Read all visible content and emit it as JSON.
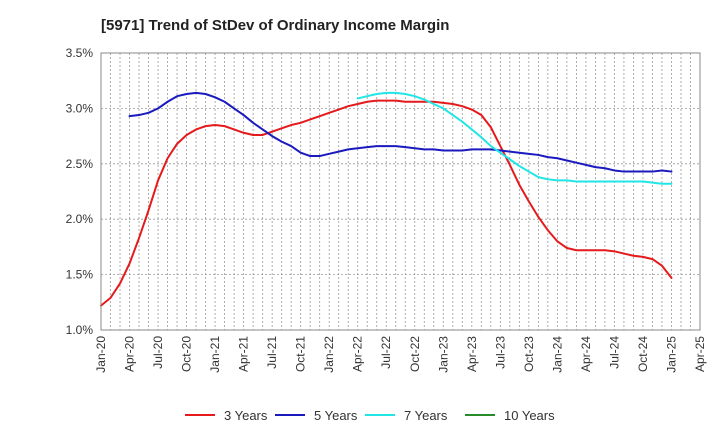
{
  "chart_data": {
    "type": "line",
    "title": "[5971]  Trend of StDev of Ordinary Income Margin",
    "xlabel": "",
    "ylabel": "",
    "ylim": [
      1.0,
      3.5
    ],
    "yticks": [
      1.0,
      1.5,
      2.0,
      2.5,
      3.0,
      3.5
    ],
    "ytick_labels": [
      "1.0%",
      "1.5%",
      "2.0%",
      "2.5%",
      "3.0%",
      "3.5%"
    ],
    "xlim": [
      "2020-01",
      "2025-04"
    ],
    "xticks": [
      "2020-01",
      "2020-04",
      "2020-07",
      "2020-10",
      "2021-01",
      "2021-04",
      "2021-07",
      "2021-10",
      "2022-01",
      "2022-04",
      "2022-07",
      "2022-10",
      "2023-01",
      "2023-04",
      "2023-07",
      "2023-10",
      "2024-01",
      "2024-04",
      "2024-07",
      "2024-10",
      "2025-01",
      "2025-04"
    ],
    "xtick_labels": [
      "Jan-20",
      "Apr-20",
      "Jul-20",
      "Oct-20",
      "Jan-21",
      "Apr-21",
      "Jul-21",
      "Oct-21",
      "Jan-22",
      "Apr-22",
      "Jul-22",
      "Oct-22",
      "Jan-23",
      "Apr-23",
      "Jul-23",
      "Oct-23",
      "Jan-24",
      "Apr-24",
      "Jul-24",
      "Oct-24",
      "Jan-25",
      "Apr-25"
    ],
    "grid": true,
    "legend_position": "bottom",
    "series": [
      {
        "name": "3 Years",
        "color": "#e41a1c",
        "x": [
          "2020-01",
          "2020-02",
          "2020-03",
          "2020-04",
          "2020-05",
          "2020-06",
          "2020-07",
          "2020-08",
          "2020-09",
          "2020-10",
          "2020-11",
          "2020-12",
          "2021-01",
          "2021-02",
          "2021-03",
          "2021-04",
          "2021-05",
          "2021-06",
          "2021-07",
          "2021-08",
          "2021-09",
          "2021-10",
          "2021-11",
          "2021-12",
          "2022-01",
          "2022-02",
          "2022-03",
          "2022-04",
          "2022-05",
          "2022-06",
          "2022-07",
          "2022-08",
          "2022-09",
          "2022-10",
          "2022-11",
          "2022-12",
          "2023-01",
          "2023-02",
          "2023-03",
          "2023-04",
          "2023-05",
          "2023-06",
          "2023-07",
          "2023-08",
          "2023-09",
          "2023-10",
          "2023-11",
          "2023-12",
          "2024-01",
          "2024-02",
          "2024-03",
          "2024-04",
          "2024-05",
          "2024-06",
          "2024-07",
          "2024-08",
          "2024-09",
          "2024-10",
          "2024-11",
          "2024-12",
          "2025-01"
        ],
        "values": [
          1.22,
          1.29,
          1.42,
          1.6,
          1.83,
          2.08,
          2.35,
          2.55,
          2.68,
          2.76,
          2.81,
          2.84,
          2.85,
          2.84,
          2.81,
          2.78,
          2.76,
          2.76,
          2.79,
          2.82,
          2.85,
          2.87,
          2.9,
          2.93,
          2.96,
          2.99,
          3.02,
          3.04,
          3.06,
          3.07,
          3.07,
          3.07,
          3.06,
          3.06,
          3.06,
          3.06,
          3.05,
          3.04,
          3.02,
          2.99,
          2.94,
          2.83,
          2.66,
          2.49,
          2.31,
          2.16,
          2.02,
          1.9,
          1.8,
          1.74,
          1.72,
          1.72,
          1.72,
          1.72,
          1.71,
          1.69,
          1.67,
          1.66,
          1.64,
          1.58,
          1.47
        ]
      },
      {
        "name": "5 Years",
        "color": "#1a1abf",
        "x": [
          "2020-04",
          "2020-05",
          "2020-06",
          "2020-07",
          "2020-08",
          "2020-09",
          "2020-10",
          "2020-11",
          "2020-12",
          "2021-01",
          "2021-02",
          "2021-03",
          "2021-04",
          "2021-05",
          "2021-06",
          "2021-07",
          "2021-08",
          "2021-09",
          "2021-10",
          "2021-11",
          "2021-12",
          "2022-01",
          "2022-02",
          "2022-03",
          "2022-04",
          "2022-05",
          "2022-06",
          "2022-07",
          "2022-08",
          "2022-09",
          "2022-10",
          "2022-11",
          "2022-12",
          "2023-01",
          "2023-02",
          "2023-03",
          "2023-04",
          "2023-05",
          "2023-06",
          "2023-07",
          "2023-08",
          "2023-09",
          "2023-10",
          "2023-11",
          "2023-12",
          "2024-01",
          "2024-02",
          "2024-03",
          "2024-04",
          "2024-05",
          "2024-06",
          "2024-07",
          "2024-08",
          "2024-09",
          "2024-10",
          "2024-11",
          "2024-12",
          "2025-01"
        ],
        "values": [
          2.93,
          2.94,
          2.96,
          3.0,
          3.06,
          3.11,
          3.13,
          3.14,
          3.13,
          3.1,
          3.06,
          3.0,
          2.94,
          2.87,
          2.81,
          2.75,
          2.7,
          2.66,
          2.6,
          2.57,
          2.57,
          2.59,
          2.61,
          2.63,
          2.64,
          2.65,
          2.66,
          2.66,
          2.66,
          2.65,
          2.64,
          2.63,
          2.63,
          2.62,
          2.62,
          2.62,
          2.63,
          2.63,
          2.63,
          2.62,
          2.61,
          2.6,
          2.59,
          2.58,
          2.56,
          2.55,
          2.53,
          2.51,
          2.49,
          2.47,
          2.46,
          2.44,
          2.43,
          2.43,
          2.43,
          2.43,
          2.44,
          2.43
        ]
      },
      {
        "name": "7 Years",
        "color": "#22e5e5",
        "x": [
          "2022-04",
          "2022-05",
          "2022-06",
          "2022-07",
          "2022-08",
          "2022-09",
          "2022-10",
          "2022-11",
          "2022-12",
          "2023-01",
          "2023-02",
          "2023-03",
          "2023-04",
          "2023-05",
          "2023-06",
          "2023-07",
          "2023-08",
          "2023-09",
          "2023-10",
          "2023-11",
          "2023-12",
          "2024-01",
          "2024-02",
          "2024-03",
          "2024-04",
          "2024-05",
          "2024-06",
          "2024-07",
          "2024-08",
          "2024-09",
          "2024-10",
          "2024-11",
          "2024-12",
          "2025-01"
        ],
        "values": [
          3.09,
          3.11,
          3.13,
          3.14,
          3.14,
          3.13,
          3.11,
          3.08,
          3.04,
          3.0,
          2.94,
          2.88,
          2.81,
          2.74,
          2.66,
          2.6,
          2.54,
          2.48,
          2.43,
          2.38,
          2.36,
          2.35,
          2.35,
          2.34,
          2.34,
          2.34,
          2.34,
          2.34,
          2.34,
          2.34,
          2.34,
          2.33,
          2.32,
          2.32
        ]
      },
      {
        "name": "10 Years",
        "color": "#2a8a2a",
        "x": [],
        "values": []
      }
    ]
  }
}
